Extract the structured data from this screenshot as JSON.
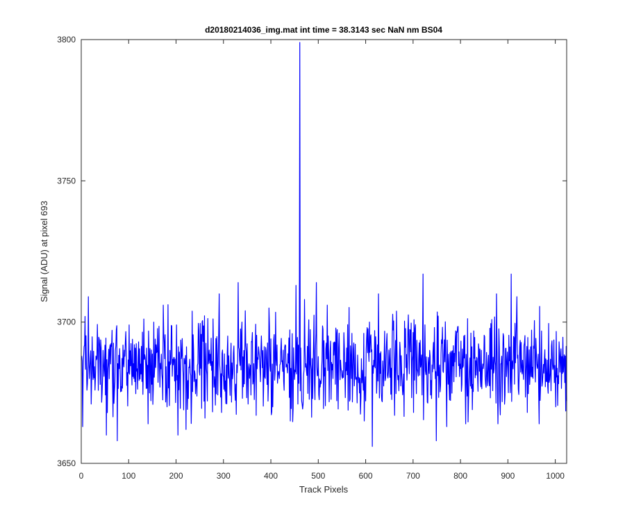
{
  "chart_data": {
    "type": "line",
    "title": "d20180214036_img.mat int time = 38.3143 sec  NaN nm BS04",
    "xlabel": "Track Pixels",
    "ylabel": "Signal (ADU) at pixel 693",
    "xlim": [
      0,
      1024
    ],
    "ylim": [
      3650,
      3800
    ],
    "xticks": [
      0,
      100,
      200,
      300,
      400,
      500,
      600,
      700,
      800,
      900,
      1000
    ],
    "yticks": [
      3650,
      3700,
      3750,
      3800
    ],
    "grid": false,
    "series_color": "#0000ff",
    "noise_model": {
      "count": 1024,
      "baseline": 3685,
      "amplitude": 8,
      "keypoints": [
        [
          0,
          3688
        ],
        [
          2,
          3663
        ],
        [
          7,
          3702
        ],
        [
          14,
          3709
        ],
        [
          20,
          3671
        ],
        [
          30,
          3688
        ],
        [
          45,
          3690
        ],
        [
          52,
          3660
        ],
        [
          60,
          3692
        ],
        [
          75,
          3658
        ],
        [
          100,
          3699
        ],
        [
          140,
          3664
        ],
        [
          152,
          3700
        ],
        [
          172,
          3706
        ],
        [
          180,
          3670
        ],
        [
          200,
          3699
        ],
        [
          203,
          3660
        ],
        [
          220,
          3662
        ],
        [
          260,
          3666
        ],
        [
          290,
          3710
        ],
        [
          295,
          3668
        ],
        [
          330,
          3714
        ],
        [
          345,
          3704
        ],
        [
          368,
          3667
        ],
        [
          395,
          3705
        ],
        [
          403,
          3670
        ],
        [
          440,
          3665
        ],
        [
          452,
          3713
        ],
        [
          456,
          3671
        ],
        [
          460,
          3799
        ],
        [
          464,
          3672
        ],
        [
          470,
          3708
        ],
        [
          495,
          3714
        ],
        [
          518,
          3706
        ],
        [
          565,
          3672
        ],
        [
          596,
          3665
        ],
        [
          613,
          3656
        ],
        [
          626,
          3710
        ],
        [
          660,
          3667
        ],
        [
          700,
          3668
        ],
        [
          720,
          3717
        ],
        [
          748,
          3658
        ],
        [
          770,
          3663
        ],
        [
          810,
          3664
        ],
        [
          875,
          3710
        ],
        [
          878,
          3664
        ],
        [
          906,
          3717
        ],
        [
          918,
          3709
        ],
        [
          940,
          3668
        ],
        [
          965,
          3664
        ],
        [
          1000,
          3670
        ],
        [
          1020,
          3688
        ],
        [
          1024,
          3671
        ]
      ]
    }
  }
}
